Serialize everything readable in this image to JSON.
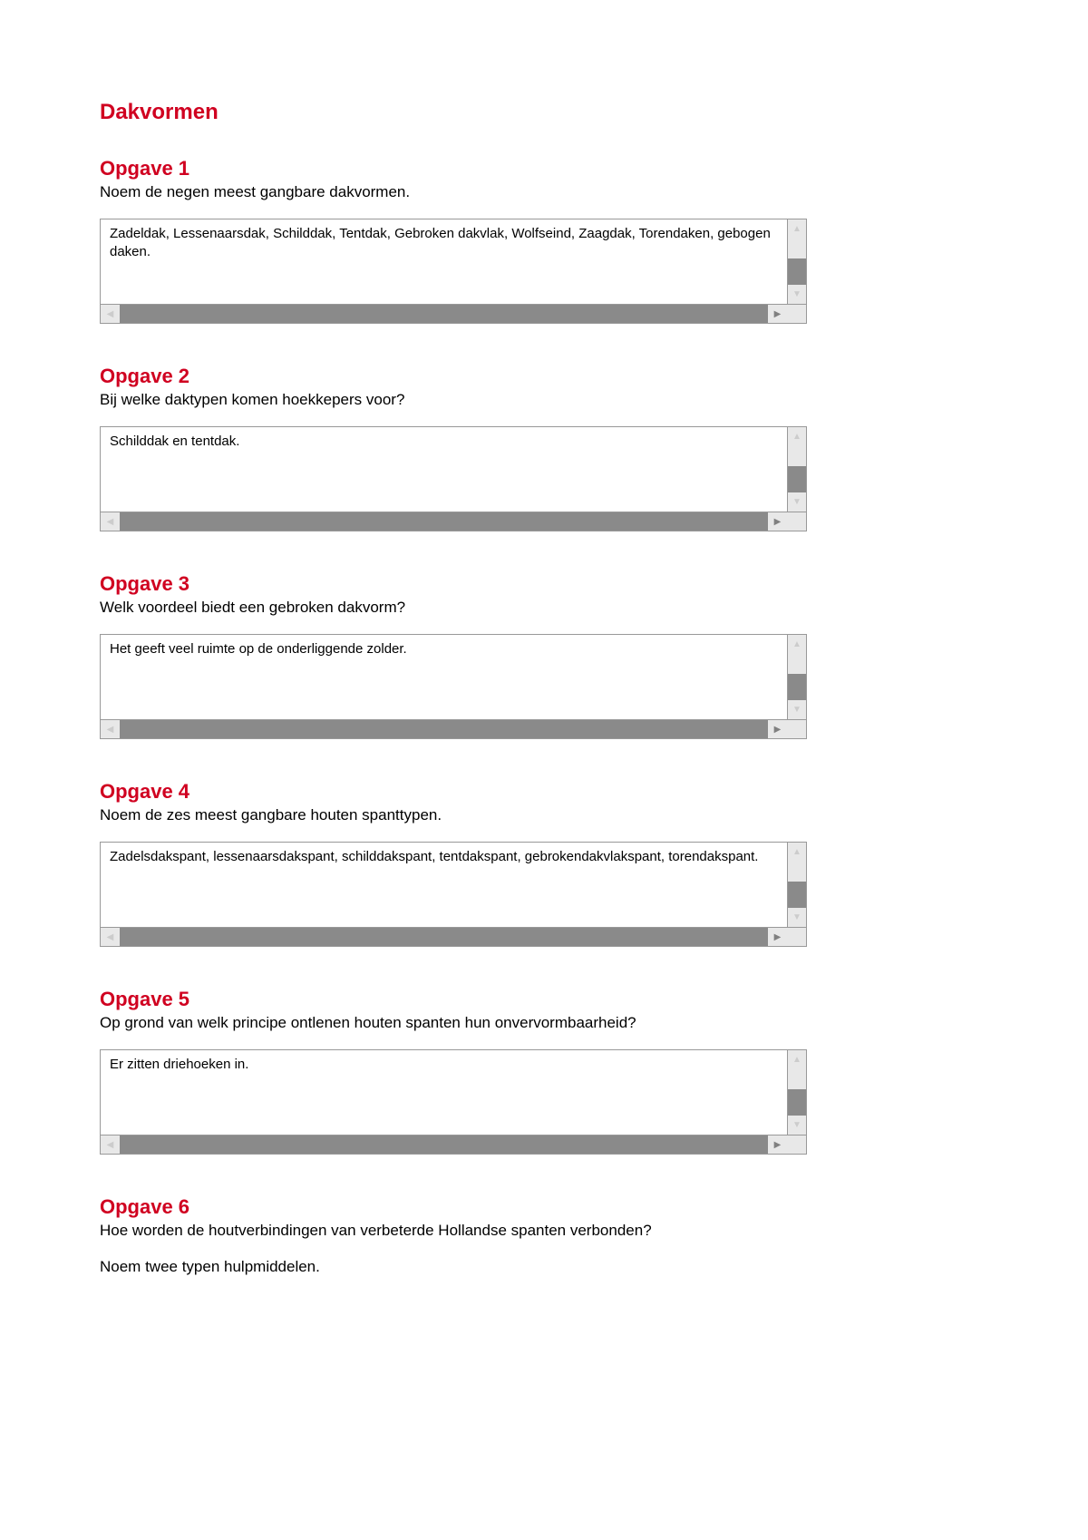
{
  "page_title": "Dakvormen",
  "colors": {
    "heading": "#d00020",
    "text": "#000000",
    "scrollbar_track": "#8a8a8a",
    "scrollbar_button": "#e8e8e8",
    "arrow_enabled": "#808080",
    "arrow_disabled": "#cccccc",
    "border": "#999999",
    "background": "#ffffff"
  },
  "opgaven": [
    {
      "title": "Opgave 1",
      "question": "Noem de negen meest gangbare dakvormen.",
      "answer": "Zadeldak, Lessenaarsdak, Schilddak, Tentdak, Gebroken dakvlak, Wolfseind, Zaagdak, Torendaken, gebogen daken.",
      "has_box": true,
      "subtext": null
    },
    {
      "title": "Opgave 2",
      "question": "Bij welke daktypen komen hoekkepers voor?",
      "answer": "Schilddak en tentdak.",
      "has_box": true,
      "subtext": null
    },
    {
      "title": "Opgave 3",
      "question": "Welk voordeel biedt een gebroken dakvorm?",
      "answer": "Het geeft veel ruimte op de onderliggende zolder.",
      "has_box": true,
      "subtext": null
    },
    {
      "title": "Opgave 4",
      "question": "Noem de zes meest gangbare houten spanttypen.",
      "answer": "Zadelsdakspant, lessenaarsdakspant, schilddakspant, tentdakspant, gebrokendakvlakspant, torendakspant.",
      "has_box": true,
      "subtext": null
    },
    {
      "title": "Opgave 5",
      "question": "Op grond van welk principe ontlenen houten spanten hun onvervormbaarheid?",
      "answer": "Er zitten driehoeken in.",
      "has_box": true,
      "subtext": null
    },
    {
      "title": "Opgave 6",
      "question": "Hoe worden de houtverbindingen van verbeterde Hollandse spanten verbonden?",
      "answer": null,
      "has_box": false,
      "subtext": "Noem twee typen hulpmiddelen."
    }
  ],
  "arrows": {
    "up": "▲",
    "down": "▼",
    "left": "◀",
    "right": "▶"
  }
}
